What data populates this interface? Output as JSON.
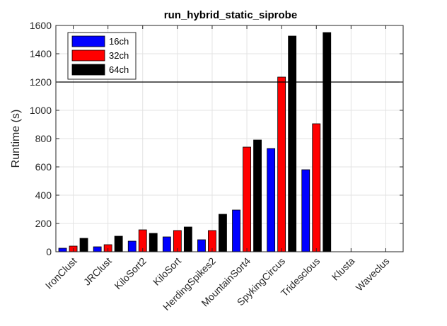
{
  "chart_data": {
    "type": "bar",
    "title": "run_hybrid_static_siprobe",
    "xlabel": "",
    "ylabel": "Runtime (s)",
    "ylim": [
      0,
      1600
    ],
    "yticks": [
      0,
      200,
      400,
      600,
      800,
      1000,
      1200,
      1400,
      1600
    ],
    "grid": true,
    "legend_position": "top-left",
    "reference_line": 1200,
    "categories": [
      "IronClust",
      "JRClust",
      "KiloSort2",
      "KiloSort",
      "HerdingSpikes2",
      "MountainSort4",
      "SpykingCircus",
      "Tridesclous",
      "Klusta",
      "Waveclus"
    ],
    "series": [
      {
        "name": "16ch",
        "color": "#0000ff",
        "values": [
          25,
          35,
          75,
          105,
          85,
          295,
          730,
          580,
          0,
          0
        ]
      },
      {
        "name": "32ch",
        "color": "#ff0000",
        "values": [
          40,
          50,
          155,
          150,
          150,
          740,
          1235,
          905,
          0,
          0
        ]
      },
      {
        "name": "64ch",
        "color": "#000000",
        "values": [
          95,
          110,
          130,
          175,
          265,
          790,
          1525,
          1550,
          0,
          0
        ]
      }
    ]
  }
}
